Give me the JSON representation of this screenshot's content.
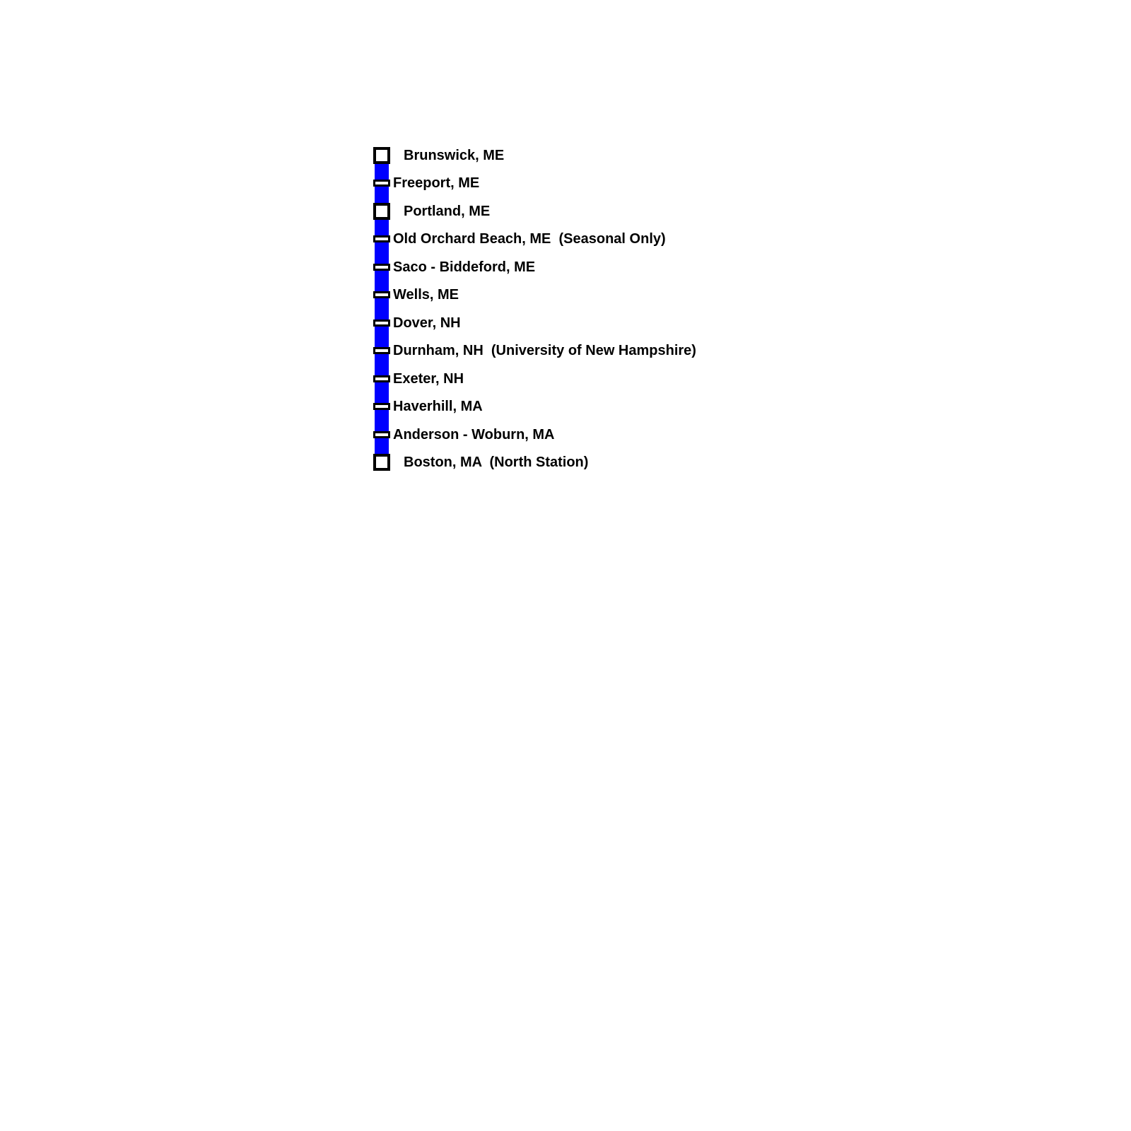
{
  "route": {
    "line_color": "#0000ff",
    "marker_border_color": "#000000",
    "marker_fill_color": "#ffffff",
    "stations": [
      {
        "label": "Brunswick, ME",
        "type": "major"
      },
      {
        "label": "Freeport, ME",
        "type": "minor"
      },
      {
        "label": "Portland, ME",
        "type": "major"
      },
      {
        "label": "Old Orchard Beach, ME  (Seasonal Only)",
        "type": "minor"
      },
      {
        "label": "Saco - Biddeford, ME",
        "type": "minor"
      },
      {
        "label": "Wells, ME",
        "type": "minor"
      },
      {
        "label": "Dover, NH",
        "type": "minor"
      },
      {
        "label": "Durnham, NH  (University of New Hampshire)",
        "type": "minor"
      },
      {
        "label": "Exeter, NH",
        "type": "minor"
      },
      {
        "label": "Haverhill, MA",
        "type": "minor"
      },
      {
        "label": "Anderson - Woburn, MA",
        "type": "minor"
      },
      {
        "label": "Boston, MA  (North Station)",
        "type": "major"
      }
    ]
  }
}
